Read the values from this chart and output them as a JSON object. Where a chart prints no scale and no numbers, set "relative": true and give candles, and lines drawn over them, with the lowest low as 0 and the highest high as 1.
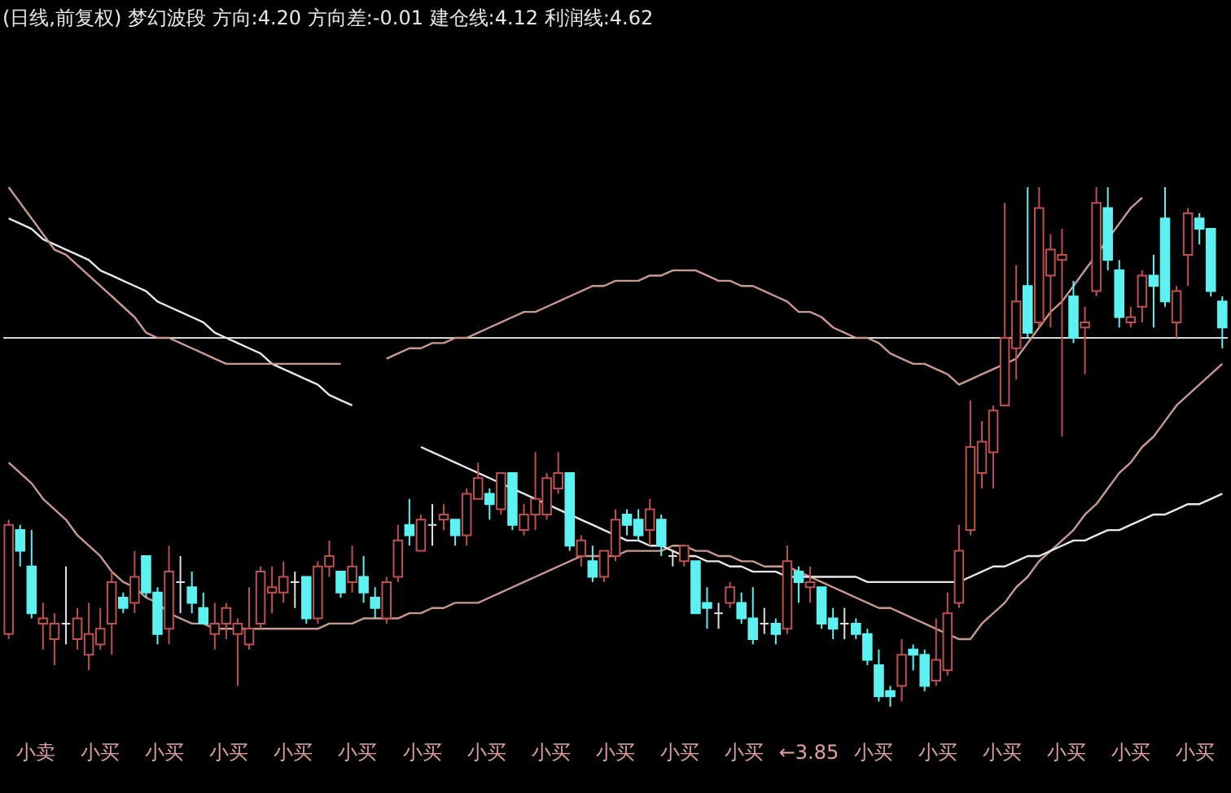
{
  "chart_data": {
    "type": "candlestick",
    "title": "(日线,前复权) 梦幻波段 方向:4.20 方向差:-0.01 建仓线:4.12 利润线:4.62",
    "relative": true,
    "categories": [
      null,
      null,
      null,
      null,
      null,
      null,
      null,
      null,
      null,
      null,
      null,
      null,
      null,
      null,
      null,
      null,
      null,
      null,
      null,
      null,
      null,
      null,
      null,
      null,
      null,
      null,
      null,
      null,
      null,
      null,
      null,
      null,
      null,
      null,
      null,
      null,
      null,
      null,
      null,
      null,
      null,
      null,
      null,
      null,
      null,
      null,
      null,
      null,
      null,
      null,
      null,
      null,
      null,
      null,
      null,
      null,
      null,
      null,
      null,
      null,
      null,
      null,
      null,
      null,
      null,
      null,
      null,
      null,
      null,
      null,
      null,
      null,
      null,
      null,
      null,
      null,
      null,
      null,
      null,
      null,
      null,
      null,
      null,
      null,
      null,
      null,
      null,
      null,
      null,
      null,
      null,
      null,
      null,
      null,
      null,
      null,
      null,
      null,
      null,
      null,
      null,
      null,
      null,
      null,
      null,
      null,
      null
    ],
    "ohlc": [
      [
        0.14,
        0.36,
        0.13,
        0.35
      ],
      [
        0.34,
        0.35,
        0.27,
        0.3
      ],
      [
        0.27,
        0.34,
        0.17,
        0.18
      ],
      [
        0.16,
        0.2,
        0.11,
        0.17
      ],
      [
        0.13,
        0.18,
        0.08,
        0.16
      ],
      [
        0.16,
        0.27,
        0.12,
        0.16
      ],
      [
        0.13,
        0.19,
        0.11,
        0.17
      ],
      [
        0.1,
        0.2,
        0.07,
        0.14
      ],
      [
        0.12,
        0.19,
        0.11,
        0.15
      ],
      [
        0.16,
        0.26,
        0.1,
        0.24
      ],
      [
        0.21,
        0.22,
        0.18,
        0.19
      ],
      [
        0.2,
        0.3,
        0.18,
        0.25
      ],
      [
        0.29,
        0.29,
        0.21,
        0.22
      ],
      [
        0.22,
        0.23,
        0.12,
        0.14
      ],
      [
        0.15,
        0.31,
        0.12,
        0.26
      ],
      [
        0.24,
        0.29,
        0.18,
        0.24
      ],
      [
        0.23,
        0.26,
        0.18,
        0.2
      ],
      [
        0.19,
        0.22,
        0.16,
        0.16
      ],
      [
        0.14,
        0.2,
        0.11,
        0.16
      ],
      [
        0.16,
        0.2,
        0.13,
        0.19
      ],
      [
        0.14,
        0.17,
        0.04,
        0.16
      ],
      [
        0.12,
        0.23,
        0.11,
        0.15
      ],
      [
        0.16,
        0.27,
        0.15,
        0.26
      ],
      [
        0.22,
        0.27,
        0.18,
        0.23
      ],
      [
        0.22,
        0.28,
        0.2,
        0.25
      ],
      [
        0.24,
        0.26,
        0.19,
        0.24
      ],
      [
        0.25,
        0.25,
        0.16,
        0.17
      ],
      [
        0.17,
        0.28,
        0.16,
        0.27
      ],
      [
        0.27,
        0.32,
        0.25,
        0.29
      ],
      [
        0.26,
        0.26,
        0.21,
        0.22
      ],
      [
        0.24,
        0.31,
        0.22,
        0.27
      ],
      [
        0.25,
        0.29,
        0.2,
        0.22
      ],
      [
        0.21,
        0.23,
        0.17,
        0.19
      ],
      [
        0.17,
        0.25,
        0.16,
        0.24
      ],
      [
        0.25,
        0.35,
        0.24,
        0.32
      ],
      [
        0.35,
        0.4,
        0.31,
        0.33
      ],
      [
        0.3,
        0.37,
        0.3,
        0.36
      ],
      [
        0.35,
        0.39,
        0.31,
        0.35
      ],
      [
        0.36,
        0.39,
        0.34,
        0.37
      ],
      [
        0.36,
        0.36,
        0.31,
        0.33
      ],
      [
        0.33,
        0.42,
        0.31,
        0.41
      ],
      [
        0.4,
        0.47,
        0.4,
        0.44
      ],
      [
        0.41,
        0.42,
        0.36,
        0.39
      ],
      [
        0.38,
        0.45,
        0.37,
        0.45
      ],
      [
        0.45,
        0.45,
        0.34,
        0.35
      ],
      [
        0.34,
        0.39,
        0.33,
        0.37
      ],
      [
        0.37,
        0.49,
        0.34,
        0.4
      ],
      [
        0.37,
        0.45,
        0.36,
        0.44
      ],
      [
        0.42,
        0.49,
        0.41,
        0.45
      ],
      [
        0.45,
        0.45,
        0.3,
        0.31
      ],
      [
        0.29,
        0.33,
        0.27,
        0.32
      ],
      [
        0.28,
        0.31,
        0.24,
        0.25
      ],
      [
        0.25,
        0.3,
        0.24,
        0.3
      ],
      [
        0.29,
        0.38,
        0.28,
        0.36
      ],
      [
        0.37,
        0.38,
        0.33,
        0.35
      ],
      [
        0.36,
        0.38,
        0.32,
        0.33
      ],
      [
        0.34,
        0.4,
        0.31,
        0.38
      ],
      [
        0.36,
        0.37,
        0.29,
        0.31
      ],
      [
        0.29,
        0.3,
        0.27,
        0.29
      ],
      [
        0.28,
        0.31,
        0.27,
        0.31
      ],
      [
        0.28,
        0.28,
        0.18,
        0.18
      ],
      [
        0.2,
        0.23,
        0.15,
        0.19
      ],
      [
        0.18,
        0.2,
        0.15,
        0.18
      ],
      [
        0.2,
        0.24,
        0.19,
        0.23
      ],
      [
        0.2,
        0.22,
        0.16,
        0.17
      ],
      [
        0.17,
        0.23,
        0.12,
        0.13
      ],
      [
        0.16,
        0.19,
        0.14,
        0.16
      ],
      [
        0.16,
        0.17,
        0.12,
        0.14
      ],
      [
        0.15,
        0.31,
        0.14,
        0.28
      ],
      [
        0.26,
        0.27,
        0.2,
        0.24
      ],
      [
        0.23,
        0.27,
        0.2,
        0.24
      ],
      [
        0.23,
        0.23,
        0.15,
        0.16
      ],
      [
        0.17,
        0.19,
        0.13,
        0.15
      ],
      [
        0.16,
        0.19,
        0.13,
        0.16
      ],
      [
        0.16,
        0.17,
        0.13,
        0.14
      ],
      [
        0.14,
        0.15,
        0.08,
        0.09
      ],
      [
        0.08,
        0.11,
        0.01,
        0.02
      ],
      [
        0.03,
        0.04,
        0,
        0.02
      ],
      [
        0.04,
        0.13,
        0.01,
        0.1
      ],
      [
        0.11,
        0.12,
        0.07,
        0.1
      ],
      [
        0.1,
        0.11,
        0.03,
        0.04
      ],
      [
        0.05,
        0.17,
        0.04,
        0.09
      ],
      [
        0.07,
        0.22,
        0.06,
        0.18
      ],
      [
        0.2,
        0.35,
        0.19,
        0.3
      ],
      [
        0.34,
        0.59,
        0.33,
        0.5
      ],
      [
        0.45,
        0.55,
        0.42,
        0.51
      ],
      [
        0.49,
        0.58,
        0.42,
        0.57
      ],
      [
        0.58,
        0.97,
        0.58,
        0.71
      ],
      [
        0.69,
        0.85,
        0.63,
        0.78
      ],
      [
        0.81,
        1,
        0.71,
        0.72
      ],
      [
        0.74,
        1,
        0.73,
        0.96
      ],
      [
        0.83,
        0.91,
        0.73,
        0.88
      ],
      [
        0.86,
        0.92,
        0.52,
        0.87
      ],
      [
        0.79,
        0.82,
        0.7,
        0.71
      ],
      [
        0.73,
        0.77,
        0.64,
        0.74
      ],
      [
        0.8,
        1,
        0.79,
        0.97
      ],
      [
        0.96,
        1,
        0.84,
        0.86
      ],
      [
        0.84,
        0.86,
        0.73,
        0.75
      ],
      [
        0.74,
        0.77,
        0.73,
        0.75
      ],
      [
        0.77,
        0.84,
        0.74,
        0.83
      ],
      [
        0.83,
        0.87,
        0.73,
        0.81
      ],
      [
        0.94,
        1,
        0.77,
        0.78
      ],
      [
        0.74,
        0.81,
        0.71,
        0.8
      ],
      [
        0.87,
        0.96,
        0.81,
        0.95
      ],
      [
        0.94,
        0.95,
        0.89,
        0.92
      ],
      [
        0.92,
        0.92,
        0.79,
        0.8
      ],
      [
        0.78,
        0.79,
        0.69,
        0.73
      ]
    ],
    "colors": [
      "#c0504d",
      "#5cf2f2",
      "#5cf2f2",
      "#c0504d",
      "#c0504d",
      "#e0e0e0",
      "#c0504d",
      "#c0504d",
      "#c0504d",
      "#c0504d",
      "#5cf2f2",
      "#c0504d",
      "#5cf2f2",
      "#5cf2f2",
      "#c0504d",
      "#e0e0e0",
      "#5cf2f2",
      "#5cf2f2",
      "#c0504d",
      "#c0504d",
      "#c0504d",
      "#c0504d",
      "#c0504d",
      "#c0504d",
      "#c0504d",
      "#e0e0e0",
      "#5cf2f2",
      "#c0504d",
      "#c0504d",
      "#5cf2f2",
      "#c0504d",
      "#5cf2f2",
      "#5cf2f2",
      "#c0504d",
      "#c0504d",
      "#5cf2f2",
      "#c0504d",
      "#e0e0e0",
      "#c0504d",
      "#5cf2f2",
      "#c0504d",
      "#c0504d",
      "#5cf2f2",
      "#c0504d",
      "#5cf2f2",
      "#c0504d",
      "#c0504d",
      "#c0504d",
      "#c0504d",
      "#5cf2f2",
      "#c0504d",
      "#5cf2f2",
      "#c0504d",
      "#c0504d",
      "#5cf2f2",
      "#5cf2f2",
      "#c0504d",
      "#5cf2f2",
      "#e0e0e0",
      "#c0504d",
      "#5cf2f2",
      "#5cf2f2",
      "#e0e0e0",
      "#c0504d",
      "#5cf2f2",
      "#5cf2f2",
      "#e0e0e0",
      "#5cf2f2",
      "#c0504d",
      "#5cf2f2",
      "#c0504d",
      "#5cf2f2",
      "#5cf2f2",
      "#e0e0e0",
      "#5cf2f2",
      "#5cf2f2",
      "#5cf2f2",
      "#5cf2f2",
      "#c0504d",
      "#5cf2f2",
      "#5cf2f2",
      "#c0504d",
      "#c0504d",
      "#c0504d",
      "#c0504d",
      "#c0504d",
      "#c0504d",
      "#c0504d",
      "#c0504d",
      "#5cf2f2",
      "#c0504d",
      "#c0504d",
      "#c0504d",
      "#5cf2f2",
      "#c0504d",
      "#c0504d",
      "#5cf2f2",
      "#5cf2f2",
      "#c0504d",
      "#c0504d",
      "#5cf2f2",
      "#5cf2f2",
      "#c0504d",
      "#c0504d",
      "#5cf2f2",
      "#5cf2f2",
      "#5cf2f2"
    ],
    "series": [
      {
        "type": "line",
        "color": "#e8e8e8",
        "values": [
          0.94,
          0.93,
          0.92,
          0.9,
          0.89,
          0.88,
          0.87,
          0.86,
          0.84,
          0.83,
          0.82,
          0.81,
          0.8,
          0.78,
          0.77,
          0.76,
          0.75,
          0.74,
          0.72,
          0.71,
          0.7,
          0.69,
          0.68,
          0.66,
          0.65,
          0.64,
          0.63,
          0.62,
          0.6,
          0.59,
          0.58,
          null,
          null,
          null,
          null,
          null,
          null,
          null,
          null,
          null,
          null,
          null,
          null,
          null,
          null,
          null,
          null,
          null,
          null,
          null,
          null,
          null,
          null,
          null,
          null,
          null,
          null,
          null,
          null,
          null,
          null,
          null,
          null,
          null,
          null,
          null,
          null,
          null,
          null,
          null,
          null,
          null,
          null,
          null,
          null,
          null,
          null,
          null,
          null,
          null,
          null,
          null,
          null,
          null,
          null,
          null,
          null,
          null,
          null,
          null,
          null,
          null,
          null,
          null,
          null,
          null,
          null,
          null,
          null,
          null,
          null,
          null,
          null,
          null,
          null,
          null,
          null
        ]
      },
      {
        "type": "line",
        "color": "#c89a90",
        "values": [
          1.0,
          0.97,
          0.94,
          0.91,
          0.88,
          0.87,
          0.85,
          0.83,
          0.81,
          0.79,
          0.77,
          0.75,
          0.72,
          0.71,
          0.71,
          0.7,
          0.69,
          0.68,
          0.67,
          0.66,
          0.66,
          0.66,
          0.66,
          0.66,
          0.66,
          0.66,
          0.66,
          0.66,
          0.66,
          0.66,
          null,
          null,
          null,
          0.67,
          0.68,
          0.69,
          0.69,
          0.7,
          0.7,
          0.71,
          0.71,
          0.72,
          0.73,
          0.74,
          0.75,
          0.76,
          0.76,
          0.77,
          0.78,
          0.79,
          0.8,
          0.81,
          0.81,
          0.82,
          0.82,
          0.82,
          0.83,
          0.83,
          0.84,
          0.84,
          0.84,
          0.83,
          0.82,
          0.82,
          0.81,
          0.81,
          0.8,
          0.79,
          0.78,
          0.76,
          0.76,
          0.75,
          0.73,
          0.72,
          0.71,
          0.71,
          0.7,
          0.68,
          0.67,
          0.66,
          0.66,
          0.65,
          0.64,
          0.62,
          0.63,
          0.64,
          0.65,
          0.66,
          0.67,
          0.7,
          0.73,
          0.76,
          0.78,
          0.81,
          0.84,
          0.87,
          0.9,
          0.93,
          0.96,
          0.98,
          null,
          null,
          null,
          null,
          null,
          null,
          null
        ]
      },
      {
        "type": "line",
        "color": "#c89a90",
        "values": [
          0.47,
          0.45,
          0.43,
          0.4,
          0.38,
          0.36,
          0.33,
          0.31,
          0.29,
          0.26,
          0.24,
          0.23,
          0.21,
          0.2,
          0.18,
          0.17,
          0.16,
          0.16,
          0.15,
          0.15,
          0.15,
          0.15,
          0.15,
          0.15,
          0.15,
          0.15,
          0.15,
          0.15,
          0.16,
          0.16,
          0.16,
          0.17,
          0.17,
          0.17,
          0.17,
          0.18,
          0.18,
          0.19,
          0.19,
          0.2,
          0.2,
          0.2,
          0.21,
          0.22,
          0.23,
          0.24,
          0.25,
          0.26,
          0.27,
          0.28,
          0.29,
          0.29,
          0.29,
          0.29,
          0.3,
          0.3,
          0.3,
          0.3,
          0.31,
          0.31,
          0.3,
          0.3,
          0.29,
          0.29,
          0.28,
          0.28,
          0.27,
          0.27,
          0.27,
          0.26,
          0.25,
          0.24,
          0.23,
          0.22,
          0.21,
          0.2,
          0.19,
          0.19,
          0.18,
          0.17,
          0.16,
          0.15,
          0.14,
          0.13,
          0.13,
          0.16,
          0.18,
          0.2,
          0.23,
          0.25,
          0.28,
          0.3,
          0.32,
          0.34,
          0.37,
          0.39,
          0.42,
          0.45,
          0.47,
          0.5,
          0.52,
          0.55,
          0.58,
          0.6,
          0.62,
          0.64,
          0.66
        ]
      },
      {
        "type": "line",
        "color": "#e8e8e8",
        "values": [
          null,
          null,
          null,
          null,
          null,
          null,
          null,
          null,
          null,
          null,
          null,
          null,
          null,
          null,
          null,
          null,
          null,
          null,
          null,
          null,
          null,
          null,
          null,
          null,
          null,
          null,
          null,
          null,
          null,
          null,
          null,
          null,
          null,
          null,
          null,
          null,
          0.5,
          0.49,
          0.48,
          0.47,
          0.46,
          0.45,
          0.44,
          0.43,
          0.42,
          0.41,
          0.4,
          0.39,
          0.38,
          0.37,
          0.36,
          0.35,
          0.34,
          0.33,
          0.32,
          0.32,
          0.31,
          0.31,
          0.3,
          0.29,
          0.29,
          0.28,
          0.28,
          0.27,
          0.27,
          0.26,
          0.26,
          0.26,
          0.25,
          0.25,
          0.25,
          0.25,
          0.25,
          0.25,
          0.25,
          0.24,
          0.24,
          0.24,
          0.24,
          0.24,
          0.24,
          0.24,
          0.24,
          0.24,
          0.25,
          0.26,
          0.27,
          0.27,
          0.28,
          0.29,
          0.29,
          0.3,
          0.31,
          0.32,
          0.32,
          0.33,
          0.34,
          0.34,
          0.35,
          0.36,
          0.37,
          0.37,
          0.38,
          0.39,
          0.39,
          0.4,
          0.41
        ]
      }
    ],
    "ref_lines": [
      {
        "axis": "y",
        "value": 0.71,
        "color": "#d8d8d8"
      }
    ],
    "annotations": [
      "小卖",
      "小买",
      "小买",
      "小买",
      "小买",
      "小买",
      "小买",
      "小买",
      "小买",
      "小买",
      "小买",
      "小买",
      "←3.85",
      "小买",
      "小买",
      "小买",
      "小买",
      "小买",
      "小买"
    ]
  }
}
